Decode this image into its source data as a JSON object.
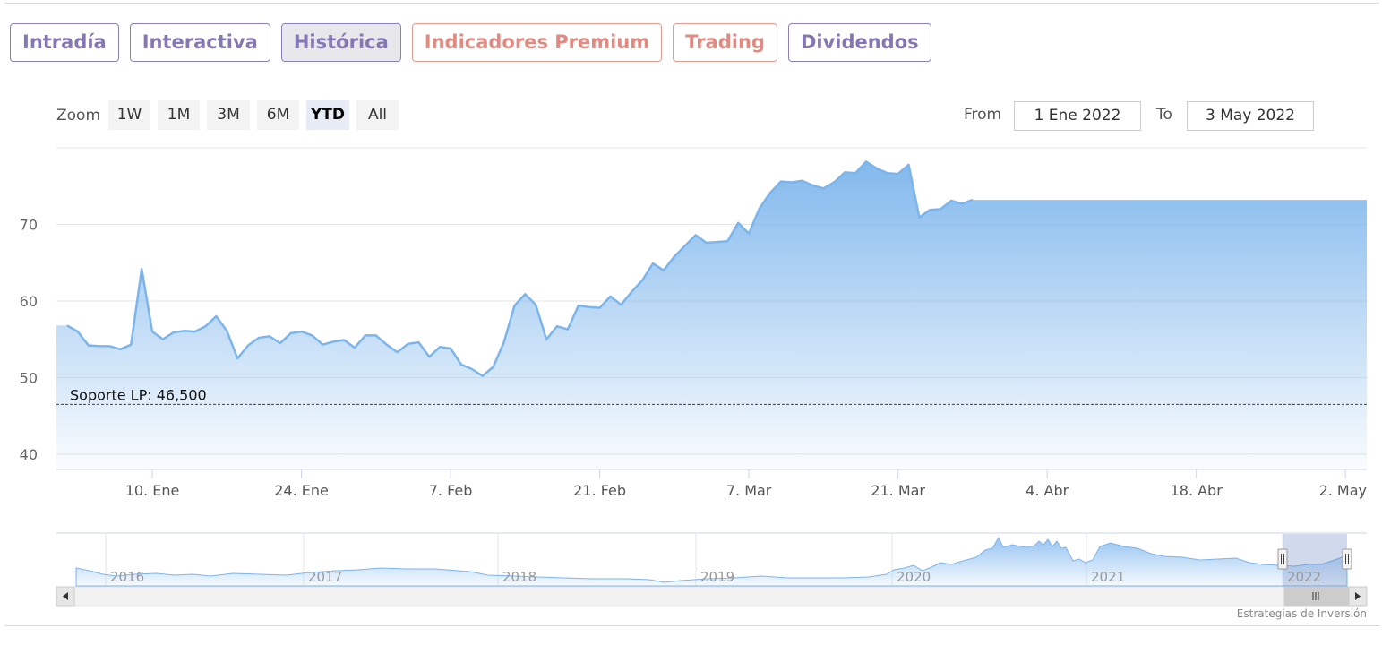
{
  "tabs": [
    {
      "label": "Intradía",
      "color": "violet",
      "active": false
    },
    {
      "label": "Interactiva",
      "color": "violet",
      "active": false
    },
    {
      "label": "Histórica",
      "color": "violet",
      "active": true
    },
    {
      "label": "Indicadores Premium",
      "color": "coral",
      "active": false
    },
    {
      "label": "Trading",
      "color": "coral",
      "active": false
    },
    {
      "label": "Dividendos",
      "color": "violet",
      "active": false
    }
  ],
  "range_selector": {
    "zoom_label": "Zoom",
    "buttons": [
      "1W",
      "1M",
      "3M",
      "6M",
      "YTD",
      "All"
    ],
    "selected": "YTD",
    "from_label": "From",
    "from_value": "1 Ene 2022",
    "to_label": "To",
    "to_value": "3 May 2022"
  },
  "chart_data": {
    "type": "area",
    "title": "",
    "xlabel": "",
    "ylabel": "",
    "ylim": [
      38,
      80
    ],
    "y_ticks": [
      40,
      50,
      60,
      70
    ],
    "x_ticks": [
      {
        "label": "10. Ene",
        "day": 9
      },
      {
        "label": "24. Ene",
        "day": 23
      },
      {
        "label": "7. Feb",
        "day": 37
      },
      {
        "label": "21. Feb",
        "day": 51
      },
      {
        "label": "7. Mar",
        "day": 65
      },
      {
        "label": "21. Mar",
        "day": 79
      },
      {
        "label": "4. Abr",
        "day": 93
      },
      {
        "label": "18. Abr",
        "day": 107
      },
      {
        "label": "2. May",
        "day": 121
      }
    ],
    "series": [
      {
        "name": "",
        "color": "#7cb5ec",
        "points": [
          [
            1,
            56.8
          ],
          [
            2,
            56
          ],
          [
            3,
            54.2
          ],
          [
            4,
            54.1
          ],
          [
            5,
            54.1
          ],
          [
            6,
            53.7
          ],
          [
            7,
            54.3
          ],
          [
            8,
            64.2
          ],
          [
            9,
            56
          ],
          [
            10,
            55
          ],
          [
            11,
            55.9
          ],
          [
            12,
            56.1
          ],
          [
            13,
            56
          ],
          [
            14,
            56.7
          ],
          [
            15,
            58
          ],
          [
            16,
            56.1
          ],
          [
            17,
            52.5
          ],
          [
            18,
            54.2
          ],
          [
            19,
            55.2
          ],
          [
            20,
            55.4
          ],
          [
            21,
            54.5
          ],
          [
            22,
            55.8
          ],
          [
            23,
            56
          ],
          [
            24,
            55.5
          ],
          [
            25,
            54.3
          ],
          [
            26,
            54.7
          ],
          [
            27,
            54.9
          ],
          [
            28,
            53.9
          ],
          [
            29,
            55.5
          ],
          [
            30,
            55.5
          ],
          [
            31,
            54.3
          ],
          [
            32,
            53.3
          ],
          [
            33,
            54.4
          ],
          [
            34,
            54.6
          ],
          [
            35,
            52.7
          ],
          [
            36,
            54
          ],
          [
            37,
            53.8
          ],
          [
            38,
            51.7
          ],
          [
            39,
            51.1
          ],
          [
            40,
            50.2
          ],
          [
            41,
            51.4
          ],
          [
            42,
            54.6
          ],
          [
            43,
            59.4
          ],
          [
            44,
            60.9
          ],
          [
            45,
            59.5
          ],
          [
            46,
            55
          ],
          [
            47,
            56.7
          ],
          [
            48,
            56.3
          ],
          [
            49,
            59.4
          ],
          [
            50,
            59.2
          ],
          [
            51,
            59.1
          ],
          [
            52,
            60.6
          ],
          [
            53,
            59.5
          ],
          [
            54,
            61.2
          ],
          [
            55,
            62.7
          ],
          [
            56,
            64.9
          ],
          [
            57,
            64
          ],
          [
            58,
            65.8
          ],
          [
            59,
            67.2
          ],
          [
            60,
            68.6
          ],
          [
            61,
            67.6
          ],
          [
            62,
            67.7
          ],
          [
            63,
            67.8
          ],
          [
            64,
            70.2
          ],
          [
            65,
            68.8
          ],
          [
            66,
            72.1
          ],
          [
            67,
            74.1
          ],
          [
            68,
            75.6
          ],
          [
            69,
            75.5
          ],
          [
            70,
            75.7
          ],
          [
            71,
            75.1
          ],
          [
            72,
            74.7
          ],
          [
            73,
            75.5
          ],
          [
            74,
            76.8
          ],
          [
            75,
            76.7
          ],
          [
            76,
            78.2
          ],
          [
            77,
            77.3
          ],
          [
            78,
            76.7
          ],
          [
            79,
            76.6
          ],
          [
            80,
            77.8
          ],
          [
            81,
            70.9
          ],
          [
            82,
            71.9
          ],
          [
            83,
            72
          ],
          [
            84,
            73.1
          ],
          [
            85,
            72.7
          ],
          [
            86,
            73.2
          ]
        ]
      }
    ],
    "plot_lines": [
      {
        "label": "Soporte LP: 46,500",
        "value": 46.5,
        "color": "#8b1a1a",
        "style": "dashed"
      }
    ],
    "navigator": {
      "year_labels": [
        "2016",
        "2017",
        "2018",
        "2019",
        "2020",
        "2021",
        "2022"
      ]
    }
  },
  "credit": "Estrategias de Inversión"
}
